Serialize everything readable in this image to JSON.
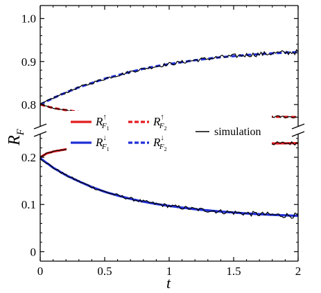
{
  "chart_data": {
    "type": "line",
    "title": "",
    "xlabel": "t",
    "ylabel": {
      "main": "R",
      "sub": "F"
    },
    "xlim": [
      0,
      2
    ],
    "y_broken_axis": true,
    "ylim_lower": [
      -0.02,
      0.25
    ],
    "ylim_upper": [
      0.75,
      1.03
    ],
    "x_ticks": [
      0,
      0.5,
      1,
      1.5,
      2
    ],
    "x_tick_labels": [
      "0",
      "0.5",
      "1",
      "1.5",
      "2"
    ],
    "y_ticks_lower": [
      0,
      0.1,
      0.2
    ],
    "y_tick_labels_lower": [
      "0",
      "0.1",
      "0.2"
    ],
    "y_ticks_upper": [
      0.8,
      0.9,
      1.0
    ],
    "y_tick_labels_upper": [
      "0.8",
      "0.9",
      "1.0"
    ],
    "grid": false,
    "legend_position": "center",
    "legend": [
      {
        "base": "R",
        "sub": "F",
        "subsub": "1",
        "sup": "↑",
        "color": "#e31a1c",
        "style": "solid"
      },
      {
        "base": "R",
        "sub": "F",
        "subsub": "2",
        "sup": "↑",
        "color": "#e31a1c",
        "style": "dashed"
      },
      {
        "base": "R",
        "sub": "F",
        "subsub": "1",
        "sup": "↓",
        "color": "#1f2fd6",
        "style": "solid"
      },
      {
        "base": "R",
        "sub": "F",
        "subsub": "2",
        "sup": "↓",
        "color": "#1f2fd6",
        "style": "dashed"
      },
      {
        "text": "simulation",
        "color": "#000000",
        "style": "thin"
      }
    ],
    "series": [
      {
        "key": "F1-up",
        "color": "#e31a1c",
        "style": "solid",
        "x": [
          0,
          0.05,
          0.1,
          0.2,
          0.3,
          0.4,
          0.5,
          0.7,
          0.9,
          1.1,
          1.3,
          1.5,
          1.7,
          2.0
        ],
        "y": [
          0.2,
          0.208,
          0.212,
          0.217,
          0.22,
          0.222,
          0.224,
          0.226,
          0.227,
          0.228,
          0.228,
          0.229,
          0.229,
          0.23
        ]
      },
      {
        "key": "F1-down",
        "color": "#1f2fd6",
        "style": "solid",
        "x": [
          0,
          0.1,
          0.2,
          0.3,
          0.4,
          0.5,
          0.6,
          0.7,
          0.8,
          0.9,
          1.0,
          1.2,
          1.4,
          1.6,
          1.8,
          2.0
        ],
        "y": [
          0.198,
          0.178,
          0.162,
          0.149,
          0.137,
          0.127,
          0.119,
          0.112,
          0.106,
          0.101,
          0.097,
          0.09,
          0.085,
          0.081,
          0.078,
          0.076
        ]
      },
      {
        "key": "F2-up",
        "color": "#1f2fd6",
        "style": "dashed",
        "x": [
          0,
          0.1,
          0.2,
          0.3,
          0.4,
          0.5,
          0.6,
          0.7,
          0.8,
          0.9,
          1.0,
          1.2,
          1.4,
          1.6,
          1.8,
          2.0
        ],
        "y": [
          0.8,
          0.815,
          0.828,
          0.84,
          0.85,
          0.86,
          0.868,
          0.876,
          0.883,
          0.889,
          0.894,
          0.903,
          0.91,
          0.915,
          0.919,
          0.922
        ]
      },
      {
        "key": "F2-down",
        "color": "#e31a1c",
        "style": "dashed",
        "x": [
          0,
          0.1,
          0.2,
          0.3,
          0.5,
          0.7,
          0.9,
          1.1,
          1.4,
          1.7,
          2.0
        ],
        "y": [
          0.8,
          0.792,
          0.787,
          0.783,
          0.779,
          0.777,
          0.775,
          0.774,
          0.773,
          0.772,
          0.771
        ]
      }
    ],
    "simulation": [
      {
        "follows": "F1-up",
        "noise": 0.004
      },
      {
        "follows": "F1-down",
        "noise": 0.006
      },
      {
        "follows": "F2-up",
        "noise": 0.006
      },
      {
        "follows": "F2-down",
        "noise": 0.003
      }
    ]
  }
}
